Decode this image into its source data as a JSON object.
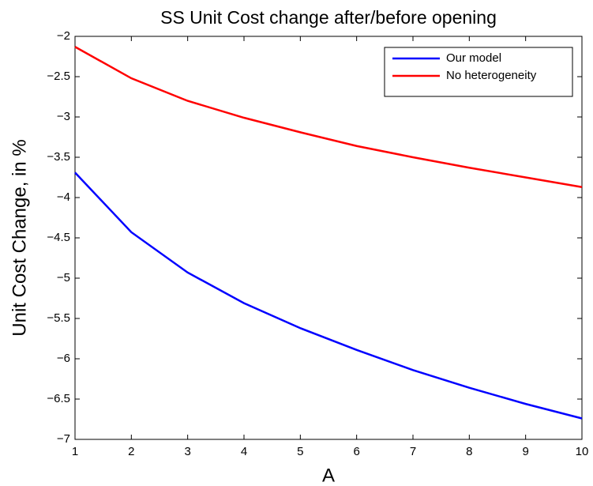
{
  "chart_data": {
    "type": "line",
    "title": "SS Unit Cost change after/before opening",
    "x_label": "A",
    "y_label": "Unit Cost Change, in %",
    "x": [
      1,
      2,
      3,
      4,
      5,
      6,
      7,
      8,
      9,
      10
    ],
    "series": [
      {
        "name": "Our model",
        "color": "#0000ff",
        "values": [
          -3.69,
          -4.43,
          -4.93,
          -5.31,
          -5.62,
          -5.89,
          -6.14,
          -6.36,
          -6.56,
          -6.74
        ]
      },
      {
        "name": "No heterogeneity",
        "color": "#ff0000",
        "values": [
          -2.13,
          -2.52,
          -2.8,
          -3.01,
          -3.19,
          -3.36,
          -3.5,
          -3.63,
          -3.75,
          -3.87
        ]
      }
    ],
    "xlim": [
      1,
      10
    ],
    "xticks": [
      1,
      2,
      3,
      4,
      5,
      6,
      7,
      8,
      9,
      10
    ],
    "ylim": [
      -7,
      -2
    ],
    "yticks": [
      {
        "value": -7,
        "label": "−7"
      },
      {
        "value": -6.5,
        "label": "−6.5"
      },
      {
        "value": -6,
        "label": "−6"
      },
      {
        "value": -5.5,
        "label": "−5.5"
      },
      {
        "value": -5,
        "label": "−5"
      },
      {
        "value": -4.5,
        "label": "−4.5"
      },
      {
        "value": -4,
        "label": "−4"
      },
      {
        "value": -3.5,
        "label": "−3.5"
      },
      {
        "value": -3,
        "label": "−3"
      },
      {
        "value": -2.5,
        "label": "−2.5"
      },
      {
        "value": -2,
        "label": "−2"
      }
    ],
    "grid": false,
    "legend": "northeast"
  }
}
